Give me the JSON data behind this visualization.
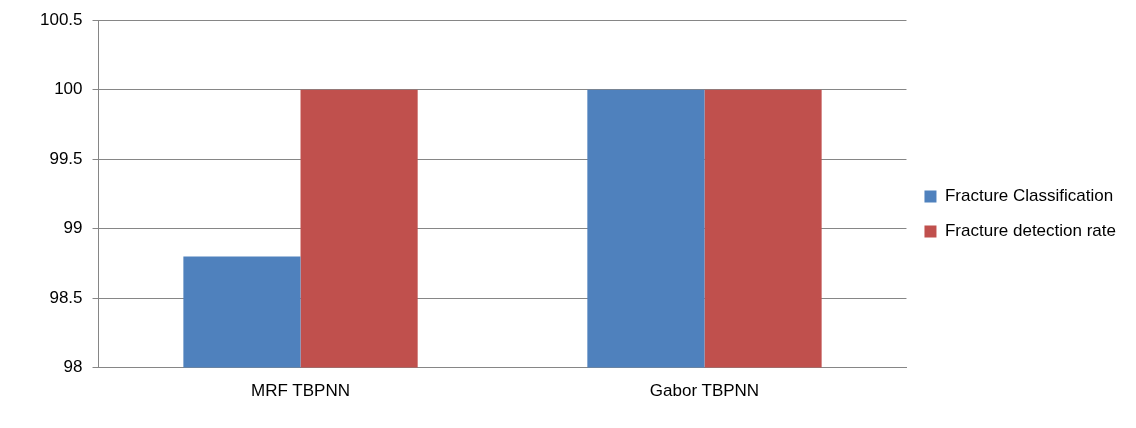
{
  "chart_data": {
    "type": "bar",
    "categories": [
      "MRF TBPNN",
      "Gabor TBPNN"
    ],
    "series": [
      {
        "name": "Fracture Classification",
        "color": "#4f81bd",
        "values": [
          98.8,
          100
        ]
      },
      {
        "name": "Fracture detection rate",
        "color": "#c0504d",
        "values": [
          100,
          100
        ]
      }
    ],
    "ylim": [
      98,
      100.5
    ],
    "yticks": [
      98,
      98.5,
      99,
      99.5,
      100,
      100.5
    ],
    "grid": "y",
    "legend": "right"
  }
}
